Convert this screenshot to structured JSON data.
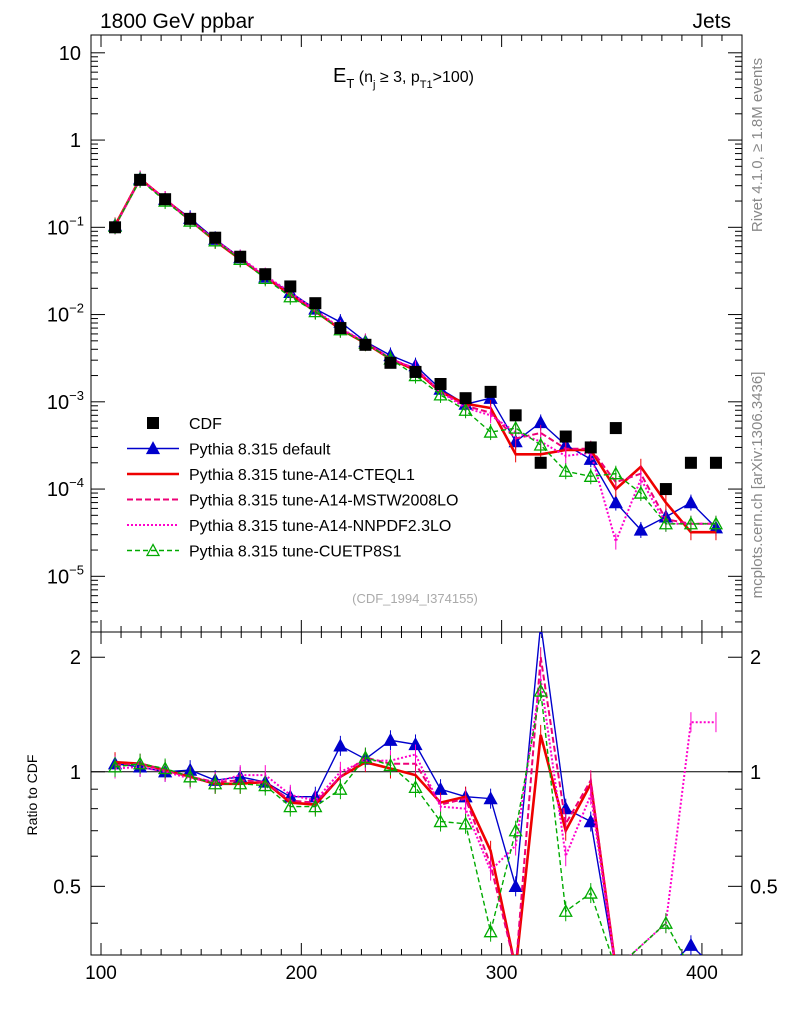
{
  "header": {
    "left": "1800 GeV ppbar",
    "right": "Jets"
  },
  "side_labels": {
    "rivet": "Rivet 4.1.0, ≥ 1.8M events",
    "mcplots": "mcplots.cern.ch [arXiv:1306.3436]"
  },
  "chart_data": {
    "type": "line",
    "title_main": "E",
    "title_sub": "T",
    "title_rest": " (n",
    "title_j": "j",
    "title_cut": " ≥ 3, p",
    "title_t1": "T1",
    "title_end": ">100)",
    "analysis_tag": "(CDF_1994_I374155)",
    "xlabel": "",
    "ylabel": "",
    "ratio_ylabel": "Ratio to CDF",
    "xlim": [
      95,
      420
    ],
    "ylim_log": [
      2.3e-06,
      16
    ],
    "ratio_ylim": [
      0.33,
      2.33
    ],
    "x_ticks": [
      "100",
      "200",
      "300",
      "400"
    ],
    "x_tick_values": [
      100,
      200,
      300,
      400
    ],
    "y_ticks": [
      {
        "v": 10,
        "base": "10",
        "exp": ""
      },
      {
        "v": 1,
        "base": "1",
        "exp": ""
      },
      {
        "v": 0.1,
        "base": "10",
        "exp": "−1"
      },
      {
        "v": 0.01,
        "base": "10",
        "exp": "−2"
      },
      {
        "v": 0.001,
        "base": "10",
        "exp": "−3"
      },
      {
        "v": 0.0001,
        "base": "10",
        "exp": "−4"
      },
      {
        "v": 1e-05,
        "base": "10",
        "exp": "−5"
      }
    ],
    "ratio_ticks": [
      "0.5",
      "1",
      "2"
    ],
    "ratio_tick_values": [
      0.5,
      1,
      2
    ],
    "x": [
      107,
      119.5,
      132,
      144.5,
      157,
      169.5,
      182,
      194.5,
      207,
      219.5,
      232,
      244.5,
      257,
      269.5,
      282,
      294.5,
      307,
      319.5,
      332,
      344.5,
      357,
      369.5,
      382,
      394.5,
      407
    ],
    "series": [
      {
        "name": "CDF",
        "color": "#000000",
        "style": "data",
        "values": [
          0.1,
          0.35,
          0.21,
          0.125,
          0.076,
          0.046,
          0.029,
          0.021,
          0.0135,
          0.007,
          0.0045,
          0.0028,
          0.0022,
          0.0016,
          0.0011,
          0.0013,
          0.0007,
          0.0002,
          0.0004,
          0.0003,
          0.0005,
          null,
          0.0001,
          0.0002,
          0.0002
        ],
        "ratio": [
          1,
          1,
          1,
          1,
          1,
          1,
          1,
          1,
          1,
          1,
          1,
          1,
          1,
          1,
          1,
          1,
          1,
          1,
          1,
          1,
          1,
          null,
          1,
          1,
          1
        ]
      },
      {
        "name": "Pythia 8.315 default",
        "color": "#0000cc",
        "style": "tri",
        "values": [
          0.105,
          0.36,
          0.21,
          0.127,
          0.073,
          0.045,
          0.027,
          0.018,
          0.0116,
          0.0082,
          0.0049,
          0.0034,
          0.0026,
          0.0014,
          0.00094,
          0.0011,
          0.00035,
          0.00058,
          0.00032,
          0.00022,
          7e-05,
          3.4e-05,
          4.8e-05,
          7e-05,
          3.6e-05
        ],
        "ratio": [
          1.05,
          1.03,
          1.0,
          1.01,
          0.95,
          0.97,
          0.94,
          0.86,
          0.86,
          1.17,
          1.08,
          1.21,
          1.18,
          0.9,
          0.86,
          0.85,
          0.5,
          2.9,
          0.8,
          0.74,
          0.14,
          null,
          0.3,
          0.35,
          0.18
        ]
      },
      {
        "name": "Pythia 8.315 tune-A14-CTEQL1",
        "color": "#ee0000",
        "style": "thick",
        "values": [
          0.105,
          0.36,
          0.21,
          0.12,
          0.07,
          0.043,
          0.027,
          0.017,
          0.0109,
          0.0068,
          0.0047,
          0.0031,
          0.0023,
          0.0013,
          0.00095,
          0.00085,
          0.00025,
          0.00025,
          0.00028,
          0.00028,
          0.0001,
          0.00018,
          7e-05,
          3.2e-05,
          3.2e-05
        ],
        "ratio": [
          1.06,
          1.05,
          1.01,
          0.97,
          0.93,
          0.93,
          0.94,
          0.83,
          0.82,
          0.97,
          1.06,
          1.02,
          0.98,
          0.83,
          0.86,
          0.62,
          0.3,
          1.25,
          0.7,
          0.93,
          0.2,
          null,
          0.3,
          0.16,
          0.16
        ]
      },
      {
        "name": "Pythia 8.315 tune-A14-MSTW2008LO",
        "color": "#ee0077",
        "style": "dashed",
        "values": [
          0.104,
          0.36,
          0.21,
          0.12,
          0.071,
          0.044,
          0.027,
          0.017,
          0.011,
          0.0067,
          0.0049,
          0.0031,
          0.0024,
          0.0013,
          0.0009,
          0.00075,
          0.00038,
          0.00044,
          0.00029,
          0.00029,
          0.00012,
          0.00015,
          4.5e-05,
          4e-05,
          4e-05
        ],
        "ratio": [
          1.04,
          1.05,
          1.01,
          0.97,
          0.94,
          0.95,
          0.94,
          0.84,
          0.83,
          0.97,
          1.09,
          1.05,
          1.05,
          0.82,
          0.85,
          0.57,
          0.3,
          2.0,
          0.73,
          0.95,
          0.22,
          null,
          0.3,
          0.2,
          0.2
        ]
      },
      {
        "name": "Pythia 8.315 tune-A14-NNPDF2.3LO",
        "color": "#ff00cc",
        "style": "dotted",
        "values": [
          0.102,
          0.36,
          0.21,
          0.12,
          0.071,
          0.045,
          0.028,
          0.018,
          0.0113,
          0.007,
          0.0048,
          0.0031,
          0.0024,
          0.0013,
          0.00085,
          0.0007,
          0.00045,
          0.00035,
          0.00024,
          0.00026,
          2.5e-05,
          0.00013,
          4e-05,
          4e-05,
          4e-05
        ],
        "ratio": [
          1.02,
          1.03,
          1.0,
          0.96,
          0.94,
          0.98,
          0.98,
          0.87,
          0.84,
          1.0,
          1.07,
          1.07,
          1.11,
          0.81,
          0.8,
          0.55,
          0.64,
          1.75,
          0.6,
          0.87,
          0.05,
          null,
          0.4,
          1.35,
          1.35
        ]
      },
      {
        "name": "Pythia 8.315 tune-CUETP8S1",
        "color": "#00aa00",
        "style": "opentri",
        "values": [
          0.103,
          0.35,
          0.2,
          0.118,
          0.07,
          0.043,
          0.026,
          0.016,
          0.0108,
          0.0067,
          0.0047,
          0.0031,
          0.002,
          0.0012,
          0.0008,
          0.00045,
          0.0005,
          0.00032,
          0.00016,
          0.00014,
          0.00015,
          9e-05,
          4e-05,
          4e-05,
          4e-05
        ],
        "ratio": [
          1.03,
          1.05,
          1.02,
          0.97,
          0.93,
          0.93,
          0.92,
          0.81,
          0.81,
          0.9,
          1.09,
          1.04,
          0.91,
          0.74,
          0.73,
          0.38,
          0.7,
          1.63,
          0.43,
          0.48,
          0.25,
          null,
          0.4,
          0.2,
          0.2
        ]
      }
    ]
  }
}
